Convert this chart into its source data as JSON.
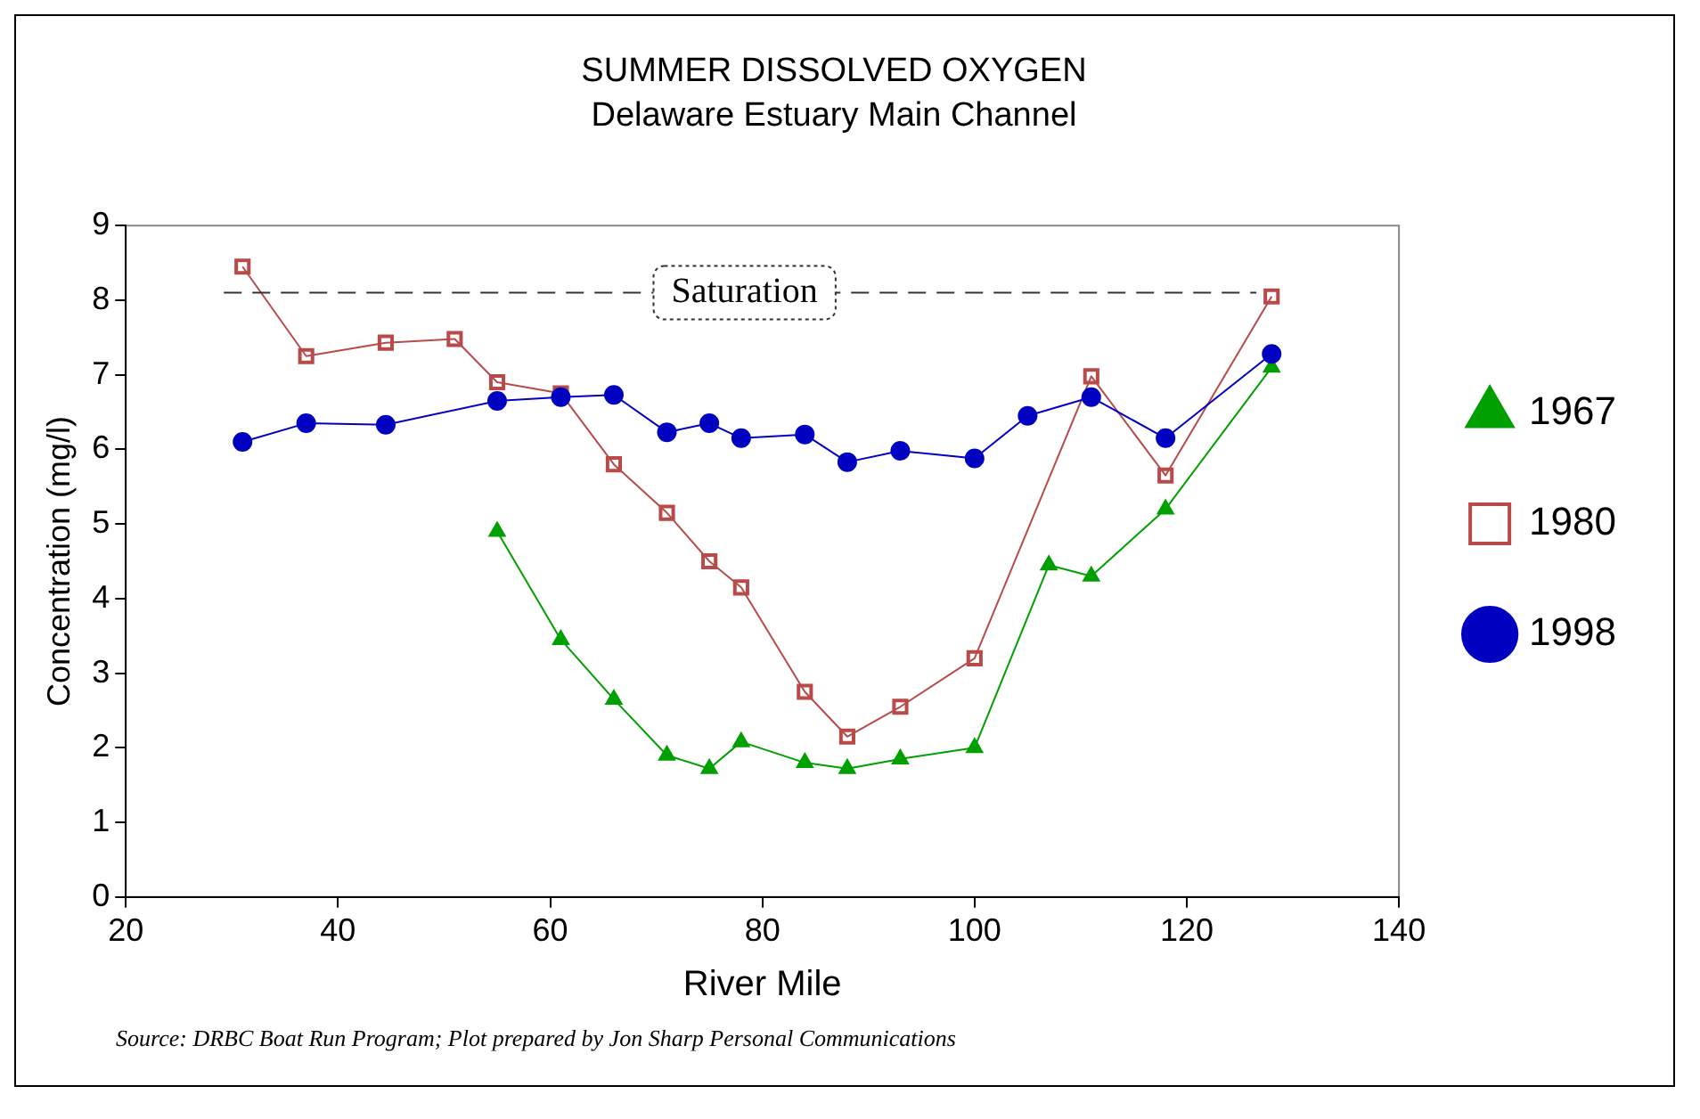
{
  "chart_data": {
    "type": "line",
    "title": "SUMMER DISSOLVED OXYGEN",
    "subtitle": "Delaware Estuary Main Channel",
    "xlabel": "River Mile",
    "ylabel": "Concentration (mg/l)",
    "xlim": [
      20,
      140
    ],
    "xticks": [
      20,
      40,
      60,
      80,
      100,
      120,
      140
    ],
    "ylim": [
      0,
      9
    ],
    "yticks": [
      0,
      1,
      2,
      3,
      4,
      5,
      6,
      7,
      8,
      9
    ],
    "series": [
      {
        "name": "1967",
        "color": "#00a000",
        "marker": "triangle",
        "x": [
          55,
          61,
          66,
          71,
          75,
          78,
          84,
          88,
          93,
          100,
          107,
          111,
          118,
          128
        ],
        "values": [
          4.9,
          3.45,
          2.65,
          1.9,
          1.72,
          2.08,
          1.8,
          1.72,
          1.85,
          2.0,
          4.45,
          4.3,
          5.2,
          7.1
        ]
      },
      {
        "name": "1980",
        "color": "#b84a4a",
        "marker": "square",
        "x": [
          31,
          37,
          44.5,
          51,
          55,
          61,
          66,
          71,
          75,
          78,
          84,
          88,
          93,
          100,
          111,
          118,
          128
        ],
        "values": [
          8.45,
          7.25,
          7.43,
          7.48,
          6.9,
          6.75,
          5.8,
          5.15,
          4.5,
          4.15,
          2.75,
          2.15,
          2.55,
          3.2,
          6.98,
          5.65,
          8.05
        ]
      },
      {
        "name": "1998",
        "color": "#0000c0",
        "marker": "circle",
        "x": [
          31,
          37,
          44.5,
          55,
          61,
          66,
          71,
          75,
          78,
          84,
          88,
          93,
          100,
          105,
          111,
          118,
          128
        ],
        "values": [
          6.1,
          6.35,
          6.33,
          6.65,
          6.7,
          6.73,
          6.23,
          6.35,
          6.15,
          6.2,
          5.83,
          5.98,
          5.88,
          6.45,
          6.7,
          6.15,
          7.28
        ]
      }
    ],
    "ref_lines": [
      {
        "axis": "y",
        "value": 8.1,
        "label": "Saturation",
        "line_style": "dashed",
        "color": "#333333"
      }
    ],
    "annotations": [
      "Source: DRBC Boat Run Program; Plot prepared by Jon Sharp Personal Communications"
    ],
    "grid": false,
    "legend": "right",
    "line_style": "solid"
  }
}
